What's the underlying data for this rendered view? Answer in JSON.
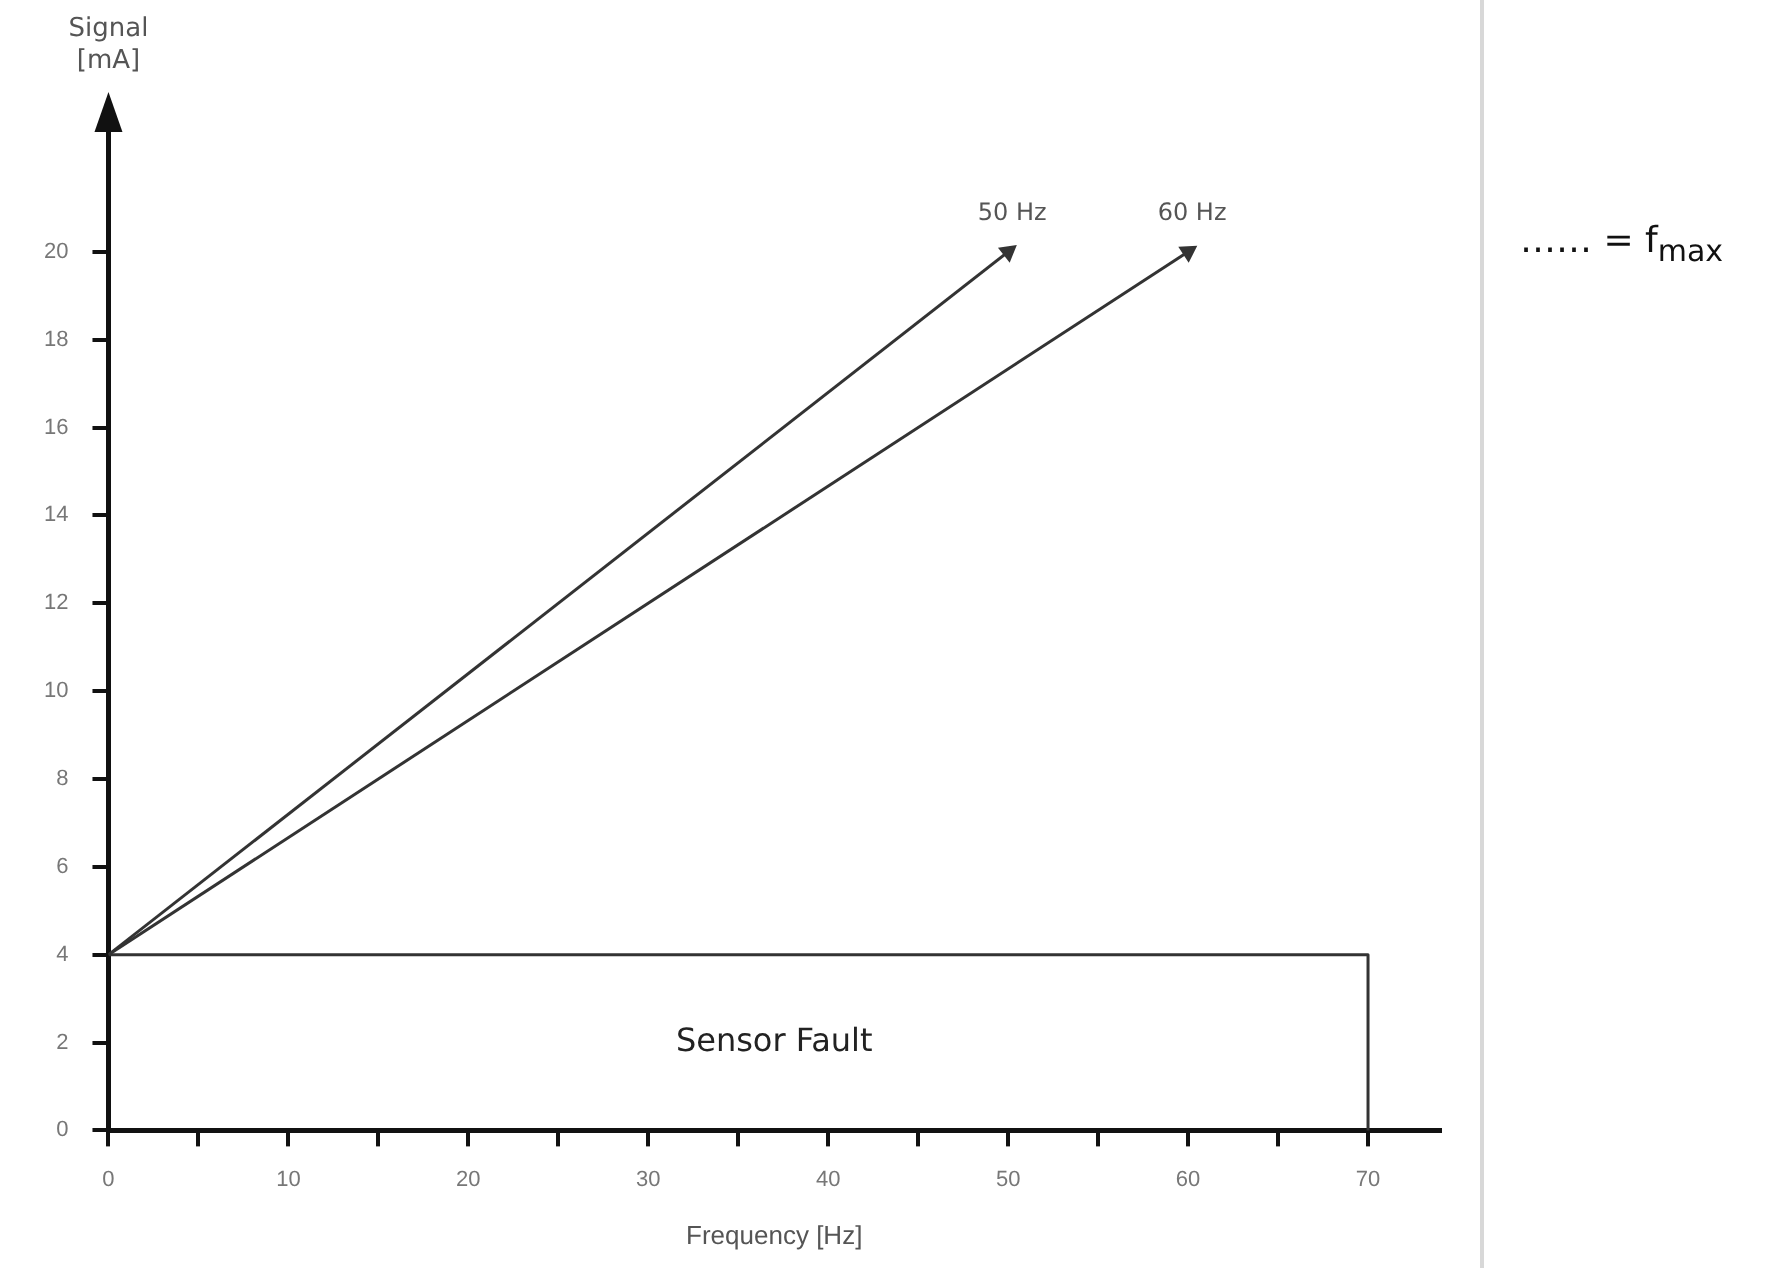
{
  "chart_data": {
    "type": "line",
    "xlabel": "Frequency [Hz]",
    "ylabel": "Signal [mA]",
    "xlim": [
      0,
      74
    ],
    "ylim": [
      0,
      23
    ],
    "xticks": [
      0,
      {
        "value": 5,
        "label": null
      },
      10,
      {
        "value": 15,
        "label": null
      },
      20,
      {
        "value": 25,
        "label": null
      },
      30,
      {
        "value": 35,
        "label": null
      },
      40,
      {
        "value": 45,
        "label": null
      },
      50,
      {
        "value": 55,
        "label": null
      },
      60,
      {
        "value": 65,
        "label": null
      },
      70
    ],
    "yticks": [
      0,
      2,
      4,
      6,
      8,
      10,
      12,
      14,
      16,
      18,
      20
    ],
    "series": [
      {
        "name": "50 Hz",
        "color": "#333333",
        "x": [
          0,
          50
        ],
        "values": [
          4,
          20
        ]
      },
      {
        "name": "60 Hz",
        "color": "#333333",
        "x": [
          0,
          60
        ],
        "values": [
          4,
          20
        ]
      },
      {
        "color": "#333333",
        "x": [
          0,
          70,
          70
        ],
        "values": [
          4,
          4,
          0
        ]
      }
    ],
    "annotations": [
      "Sensor Fault",
      "…… = f$_{max}$"
    ],
    "grid": false,
    "legend": false,
    "line_style": "solid"
  }
}
